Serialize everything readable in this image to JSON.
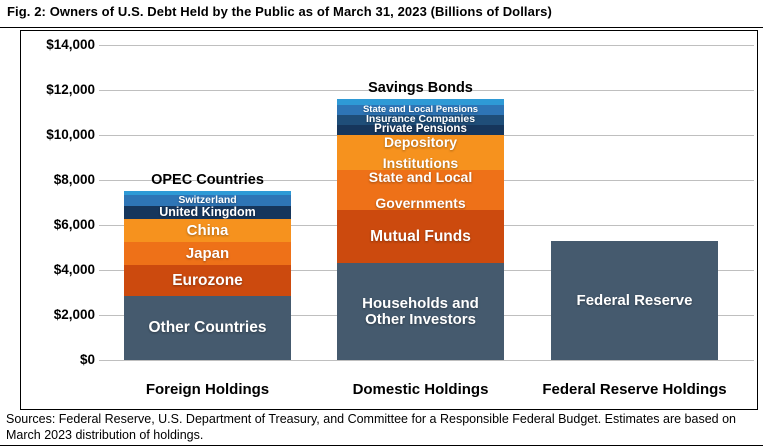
{
  "page": {
    "title": "Fig. 2: Owners of U.S. Debt Held by the Public as of March 31, 2023 (Billions of Dollars)",
    "sources_note": "Sources: Federal Reserve, U.S. Department of Treasury, and Committee for a Responsible Federal Budget. Estimates are based on March 2023 distribution of holdings."
  },
  "chart_data": {
    "type": "bar",
    "stacked": true,
    "units": "billions of dollars",
    "grid": true,
    "legend_position": "none",
    "title": "Owners of U.S. Debt Held by the Public as of March 31, 2023",
    "y_axis": {
      "min": 0,
      "max": 14000,
      "tick_interval": 2000,
      "tick_labels": [
        "$14,000",
        "$12,000",
        "$10,000",
        "$8,000",
        "$6,000",
        "$4,000",
        "$2,000",
        "$0"
      ]
    },
    "categories": [
      "Foreign Holdings",
      "Domestic Holdings",
      "Federal Reserve Holdings"
    ],
    "bars": [
      {
        "category": "Foreign Holdings",
        "total": 7500,
        "segments": [
          {
            "name": "OPEC Countries",
            "value": 180,
            "color": "#2E9AD6",
            "label_position": "above",
            "font_px": 14.5
          },
          {
            "name": "Switzerland",
            "value": 490,
            "color": "#2E75B6",
            "font_px": 10.5
          },
          {
            "name": "United Kingdom",
            "value": 580,
            "color": "#16365C",
            "font_px": 12.5
          },
          {
            "name": "China",
            "value": 1020,
            "color": "#F6921E",
            "font_px": 15
          },
          {
            "name": "Japan",
            "value": 1020,
            "color": "#EE7118",
            "font_px": 15
          },
          {
            "name": "Eurozone",
            "value": 1380,
            "color": "#CC4A0E",
            "font_px": 15.5
          },
          {
            "name": "Other Countries",
            "value": 2830,
            "color": "#455A6E",
            "font_px": 15.5
          }
        ]
      },
      {
        "category": "Domestic Holdings",
        "total": 11600,
        "segments": [
          {
            "name": "Savings Bonds",
            "value": 250,
            "color": "#2E9AD6",
            "label_position": "above",
            "font_px": 14.5
          },
          {
            "name": "State and Local Pensions",
            "value": 450,
            "color": "#2E75B6",
            "font_px": 9.5
          },
          {
            "name": "Insurance Companies",
            "value": 450,
            "color": "#1F4E79",
            "font_px": 10.5
          },
          {
            "name": "Private Pensions",
            "value": 450,
            "color": "#16365C",
            "font_px": 11.5
          },
          {
            "name": "Depository Institutions",
            "lines": [
              "Depository",
              "Institutions"
            ],
            "value": 1550,
            "color": "#F6921E",
            "font_px": 14,
            "spread": true
          },
          {
            "name": "State and Local Governments",
            "lines": [
              "State and Local",
              "Governments"
            ],
            "value": 1800,
            "color": "#EE7118",
            "font_px": 14,
            "spread": true
          },
          {
            "name": "Mutual Funds",
            "value": 2350,
            "color": "#CC4A0E",
            "font_px": 15.5
          },
          {
            "name": "Households and Other Investors",
            "lines": [
              "Households and",
              "Other Investors"
            ],
            "value": 4300,
            "color": "#455A6E",
            "font_px": 15
          }
        ]
      },
      {
        "category": "Federal Reserve Holdings",
        "total": 5300,
        "segments": [
          {
            "name": "Federal Reserve",
            "value": 5300,
            "color": "#455A6E",
            "font_px": 15
          }
        ]
      }
    ],
    "colors": {
      "light_blue": "#2E9AD6",
      "medium_blue": "#2E75B6",
      "steel_blue": "#1F4E79",
      "navy": "#16365C",
      "bright_orange": "#F6921E",
      "medium_orange": "#EE7118",
      "dark_red_orange": "#CC4A0E",
      "slate_gray": "#455A6E",
      "gridline": "#BFBFBF"
    }
  }
}
